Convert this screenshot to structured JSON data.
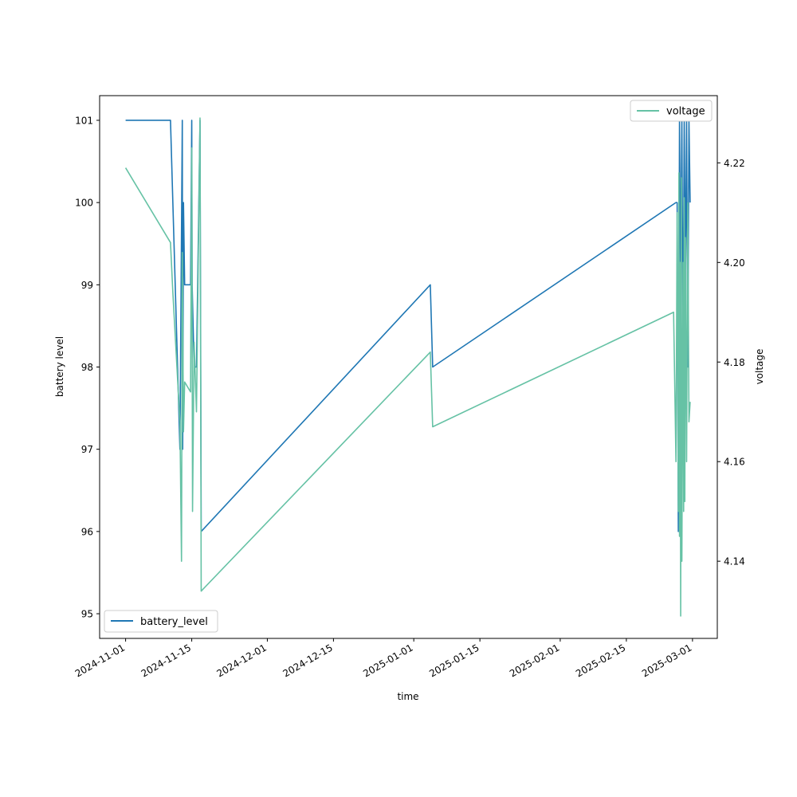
{
  "chart_data": {
    "type": "line",
    "xlabel": "time",
    "ylabel_left": "battery level",
    "ylabel_right": "voltage",
    "x_range": [
      "2024-10-26T12:00:00",
      "2025-03-06T06:00:00"
    ],
    "y_left_range": [
      94.7,
      101.3
    ],
    "y_right_range": [
      4.1245,
      4.2335
    ],
    "x_ticks": [
      "2024-11-01",
      "2024-11-15",
      "2024-12-01",
      "2024-12-15",
      "2025-01-01",
      "2025-01-15",
      "2025-02-01",
      "2025-02-15",
      "2025-03-01"
    ],
    "y_left_ticks": [
      95,
      96,
      97,
      98,
      99,
      100,
      101
    ],
    "y_right_ticks": [
      4.14,
      4.16,
      4.18,
      4.2,
      4.22
    ],
    "legend_left": {
      "placement": "lower-left",
      "label": "battery_level"
    },
    "legend_right": {
      "placement": "upper-right",
      "label": "voltage"
    },
    "colors": {
      "battery_level": "#1f77b4",
      "voltage": "#66c2a5"
    },
    "series": [
      {
        "name": "battery_level",
        "axis": "left",
        "points": [
          [
            "2024-11-01T00:00",
            101
          ],
          [
            "2024-11-10T12:00",
            101
          ],
          [
            "2024-11-11T00:00",
            100
          ],
          [
            "2024-11-12T12:00",
            97
          ],
          [
            "2024-11-13T00:00",
            101
          ],
          [
            "2024-11-13T02:00",
            97
          ],
          [
            "2024-11-13T06:00",
            100
          ],
          [
            "2024-11-13T12:00",
            99
          ],
          [
            "2024-11-14T18:00",
            99
          ],
          [
            "2024-11-15T00:00",
            101
          ],
          [
            "2024-11-15T02:00",
            99
          ],
          [
            "2024-11-15T12:00",
            98
          ],
          [
            "2024-11-16T00:00",
            98
          ],
          [
            "2024-11-16T18:00",
            101
          ],
          [
            "2024-11-17T00:00",
            96
          ],
          [
            "2025-01-04T12:00",
            99
          ],
          [
            "2025-01-05T00:00",
            98
          ],
          [
            "2025-02-25T12:00",
            100
          ],
          [
            "2025-02-25T18:00",
            100
          ],
          [
            "2025-02-26T00:00",
            96
          ],
          [
            "2025-02-26T06:00",
            101
          ],
          [
            "2025-02-26T12:00",
            99
          ],
          [
            "2025-02-26T18:00",
            101
          ],
          [
            "2025-02-27T00:00",
            98
          ],
          [
            "2025-02-27T06:00",
            101
          ],
          [
            "2025-02-27T12:00",
            99
          ],
          [
            "2025-02-27T18:00",
            101
          ],
          [
            "2025-02-28T00:00",
            98
          ],
          [
            "2025-02-28T06:00",
            101
          ],
          [
            "2025-02-28T12:00",
            100
          ]
        ]
      },
      {
        "name": "voltage",
        "axis": "right",
        "points": [
          [
            "2024-11-01T00:00",
            4.219
          ],
          [
            "2024-11-10T12:00",
            4.204
          ],
          [
            "2024-11-11T00:00",
            4.194
          ],
          [
            "2024-11-12T12:00",
            4.168
          ],
          [
            "2024-11-12T20:00",
            4.14
          ],
          [
            "2024-11-13T00:00",
            4.202
          ],
          [
            "2024-11-13T06:00",
            4.166
          ],
          [
            "2024-11-13T12:00",
            4.176
          ],
          [
            "2024-11-14T18:00",
            4.174
          ],
          [
            "2024-11-15T00:00",
            4.223
          ],
          [
            "2024-11-15T04:00",
            4.15
          ],
          [
            "2024-11-15T12:00",
            4.184
          ],
          [
            "2024-11-16T00:00",
            4.17
          ],
          [
            "2024-11-16T18:00",
            4.229
          ],
          [
            "2024-11-17T00:00",
            4.134
          ],
          [
            "2025-01-04T12:00",
            4.182
          ],
          [
            "2025-01-05T00:00",
            4.167
          ],
          [
            "2025-02-25T00:00",
            4.19
          ],
          [
            "2025-02-25T12:00",
            4.16
          ],
          [
            "2025-02-25T18:00",
            4.21
          ],
          [
            "2025-02-26T00:00",
            4.15
          ],
          [
            "2025-02-26T03:00",
            4.218
          ],
          [
            "2025-02-26T06:00",
            4.145
          ],
          [
            "2025-02-26T09:00",
            4.2
          ],
          [
            "2025-02-26T12:00",
            4.129
          ],
          [
            "2025-02-26T15:00",
            4.217
          ],
          [
            "2025-02-26T18:00",
            4.14
          ],
          [
            "2025-02-27T00:00",
            4.2
          ],
          [
            "2025-02-27T03:00",
            4.15
          ],
          [
            "2025-02-27T06:00",
            4.213
          ],
          [
            "2025-02-27T09:00",
            4.152
          ],
          [
            "2025-02-27T12:00",
            4.205
          ],
          [
            "2025-02-27T18:00",
            4.16
          ],
          [
            "2025-02-28T00:00",
            4.212
          ],
          [
            "2025-02-28T06:00",
            4.168
          ],
          [
            "2025-02-28T12:00",
            4.172
          ]
        ]
      }
    ]
  }
}
